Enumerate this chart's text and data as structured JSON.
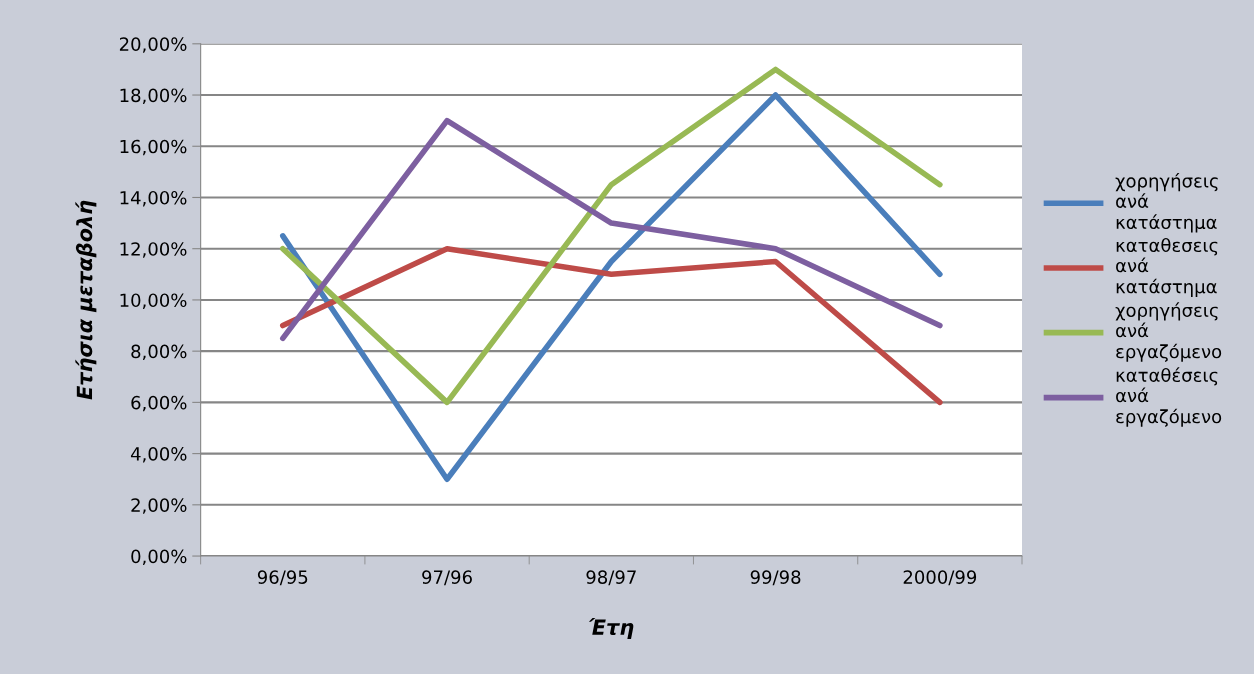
{
  "chart_data": {
    "type": "line",
    "xlabel": "Έτη",
    "ylabel": "Ετήσια μεταβολή",
    "categories": [
      "96/95",
      "97/96",
      "98/97",
      "99/98",
      "2000/99"
    ],
    "series": [
      {
        "name": "χορηγήσεις ανά κατάστημα",
        "color": "#4a7ebb",
        "values": [
          12.5,
          3.0,
          11.5,
          18.0,
          11.0
        ]
      },
      {
        "name": "καταθεσεις ανά κατάστημα",
        "color": "#be4b48",
        "values": [
          9.0,
          12.0,
          11.0,
          11.5,
          6.0
        ]
      },
      {
        "name": "χορηγήσεις ανά εργαζόμενο",
        "color": "#98b954",
        "values": [
          12.0,
          6.0,
          14.5,
          19.0,
          14.5
        ]
      },
      {
        "name": "καταθέσεις ανά εργαζόμενο",
        "color": "#7d5fa0",
        "values": [
          8.5,
          17.0,
          13.0,
          12.0,
          9.0
        ]
      }
    ],
    "ylim": [
      0,
      20
    ],
    "yticks": [
      {
        "value": 0,
        "label": "0,00%"
      },
      {
        "value": 2,
        "label": "2,00%"
      },
      {
        "value": 4,
        "label": "4,00%"
      },
      {
        "value": 6,
        "label": "6,00%"
      },
      {
        "value": 8,
        "label": "8,00%"
      },
      {
        "value": 10,
        "label": "10,00%"
      },
      {
        "value": 12,
        "label": "12,00%"
      },
      {
        "value": 14,
        "label": "14,00%"
      },
      {
        "value": 16,
        "label": "16,00%"
      },
      {
        "value": 18,
        "label": "18,00%"
      },
      {
        "value": 20,
        "label": "20,00%"
      }
    ],
    "grid": "y",
    "legend": "right",
    "marker": "none",
    "line_style": "solid"
  }
}
